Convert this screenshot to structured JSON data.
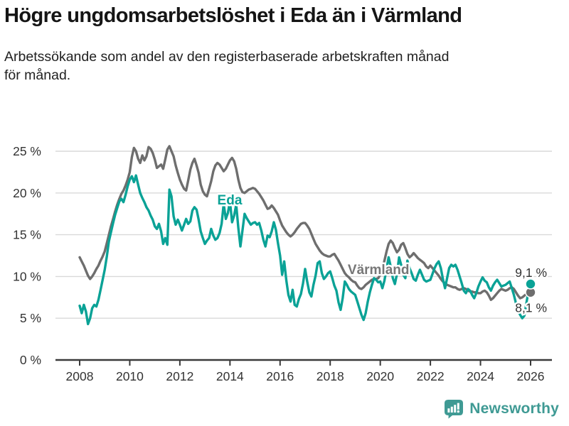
{
  "page": {
    "title": "Högre ungdomsarbetslöshet i Eda än i Värmland",
    "subtitle_line1": "Arbetssökande som andel av den registerbaserade arbetskraften månad",
    "subtitle_line2": "för månad."
  },
  "footer": {
    "brand": "Newsworthy",
    "brand_color": "#3f9a94",
    "icon": "bar-chart-speech-bubble-icon"
  },
  "chart_data": {
    "type": "line",
    "title": "Högre ungdomsarbetslöshet i Eda än i Värmland",
    "subtitle": "Arbetssökande som andel av den registerbaserade arbetskraften månad för månad.",
    "xlabel": "",
    "ylabel": "",
    "grid": true,
    "x_range": [
      2008,
      2026.85
    ],
    "ylim": [
      0,
      26
    ],
    "y_ticks": [
      {
        "value": 0,
        "label": "0 %"
      },
      {
        "value": 5,
        "label": "5 %"
      },
      {
        "value": 10,
        "label": "10 %"
      },
      {
        "value": 15,
        "label": "15 %"
      },
      {
        "value": 20,
        "label": "20 %"
      },
      {
        "value": 25,
        "label": "25 %"
      }
    ],
    "x_ticks": [
      {
        "value": 2008,
        "label": "2008"
      },
      {
        "value": 2010,
        "label": "2010"
      },
      {
        "value": 2012,
        "label": "2012"
      },
      {
        "value": 2014,
        "label": "2014"
      },
      {
        "value": 2016,
        "label": "2016"
      },
      {
        "value": 2018,
        "label": "2018"
      },
      {
        "value": 2020,
        "label": "2020"
      },
      {
        "value": 2022,
        "label": "2022"
      },
      {
        "value": 2024,
        "label": "2024"
      },
      {
        "value": 2026,
        "label": "2026"
      }
    ],
    "colors": {
      "eda": "#0aa296",
      "varmland": "#6e6e6e",
      "grid": "#d9d9d9",
      "axis": "#3a3a3a",
      "text": "#333333"
    },
    "series": [
      {
        "name": "Värmland",
        "color": "#6e6e6e",
        "start_year": 2008,
        "interval_months": 1,
        "values": [
          12.3,
          11.8,
          11.3,
          10.7,
          10.1,
          9.7,
          10.0,
          10.4,
          10.9,
          11.3,
          11.9,
          12.4,
          13.0,
          14.0,
          15.0,
          16.0,
          16.9,
          17.8,
          18.6,
          19.3,
          19.9,
          20.3,
          20.9,
          21.6,
          22.5,
          24.3,
          25.4,
          25.0,
          24.1,
          23.6,
          24.5,
          23.9,
          24.4,
          25.5,
          25.3,
          24.8,
          24.0,
          23.0,
          23.2,
          23.4,
          22.9,
          24.0,
          25.2,
          25.6,
          25.0,
          24.4,
          23.3,
          22.4,
          21.6,
          21.0,
          20.5,
          20.3,
          21.5,
          22.8,
          23.6,
          24.1,
          23.3,
          22.4,
          21.0,
          20.2,
          19.8,
          19.6,
          20.5,
          21.4,
          22.6,
          23.3,
          23.6,
          23.4,
          23.0,
          22.6,
          22.9,
          23.4,
          23.9,
          24.2,
          23.8,
          22.9,
          21.6,
          20.6,
          20.1,
          20.0,
          20.2,
          20.4,
          20.5,
          20.6,
          20.5,
          20.2,
          19.9,
          19.5,
          19.1,
          18.6,
          18.1,
          18.2,
          18.5,
          18.2,
          17.8,
          17.4,
          16.7,
          16.1,
          15.7,
          15.3,
          15.0,
          14.8,
          15.0,
          15.3,
          15.7,
          16.0,
          16.3,
          16.4,
          16.4,
          16.1,
          15.7,
          15.1,
          14.5,
          13.9,
          13.5,
          13.1,
          12.8,
          12.6,
          12.5,
          12.4,
          12.4,
          12.6,
          12.7,
          12.3,
          11.9,
          11.4,
          10.9,
          10.4,
          10.1,
          9.9,
          9.6,
          9.4,
          9.3,
          8.9,
          8.6,
          8.5,
          8.7,
          9.0,
          9.2,
          9.4,
          9.6,
          9.7,
          9.7,
          9.8,
          10.2,
          10.8,
          11.9,
          13.0,
          13.9,
          14.3,
          14.0,
          13.4,
          12.9,
          13.2,
          13.8,
          14.0,
          13.4,
          12.7,
          12.3,
          12.5,
          12.8,
          12.5,
          12.2,
          12.0,
          11.8,
          11.6,
          11.2,
          11.0,
          11.3,
          11.0,
          10.7,
          10.4,
          10.1,
          9.7,
          9.4,
          9.2,
          9.0,
          8.9,
          8.8,
          8.7,
          8.7,
          8.5,
          8.4,
          8.5,
          8.6,
          8.5,
          8.3,
          8.2,
          8.2,
          8.1,
          8.1,
          8.0,
          8.0,
          8.2,
          8.3,
          8.1,
          7.7,
          7.2,
          7.4,
          7.7,
          8.0,
          8.3,
          8.5,
          8.4,
          8.3,
          8.4,
          8.6,
          8.7,
          8.5,
          8.1,
          7.7,
          7.4,
          7.5,
          7.7,
          7.9,
          8.0,
          8.1
        ]
      },
      {
        "name": "Eda",
        "color": "#0aa296",
        "start_year": 2008,
        "interval_months": 1,
        "values": [
          6.5,
          5.6,
          6.6,
          5.8,
          4.3,
          5.0,
          6.2,
          6.6,
          6.4,
          7.2,
          8.4,
          9.6,
          10.8,
          12.4,
          14.2,
          15.3,
          16.4,
          17.4,
          18.2,
          19.0,
          19.3,
          18.9,
          19.8,
          20.8,
          21.6,
          22.0,
          21.3,
          22.1,
          21.0,
          20.0,
          19.4,
          18.9,
          18.3,
          17.9,
          17.3,
          16.8,
          16.0,
          15.7,
          16.3,
          15.4,
          13.9,
          14.6,
          13.8,
          20.4,
          19.6,
          17.2,
          16.2,
          16.8,
          16.2,
          15.5,
          16.2,
          16.9,
          16.3,
          16.6,
          17.9,
          18.3,
          18.0,
          16.8,
          15.4,
          14.6,
          13.9,
          14.3,
          14.6,
          15.7,
          14.9,
          14.4,
          14.6,
          15.2,
          16.3,
          18.7,
          16.9,
          17.6,
          19.0,
          16.5,
          17.3,
          18.6,
          15.8,
          13.6,
          15.5,
          17.5,
          17.0,
          16.6,
          16.2,
          16.4,
          16.5,
          16.2,
          16.4,
          15.5,
          14.4,
          13.6,
          14.9,
          14.7,
          15.4,
          16.5,
          15.6,
          14.0,
          12.5,
          10.2,
          11.8,
          9.5,
          7.8,
          7.0,
          8.4,
          6.6,
          6.4,
          7.3,
          7.9,
          9.2,
          10.9,
          9.4,
          8.1,
          7.6,
          9.0,
          10.1,
          11.6,
          11.8,
          10.4,
          9.7,
          10.0,
          10.4,
          10.6,
          9.8,
          8.9,
          8.3,
          6.9,
          6.0,
          7.4,
          9.4,
          9.0,
          8.5,
          8.2,
          8.0,
          7.8,
          7.0,
          6.2,
          5.4,
          4.8,
          5.6,
          7.0,
          8.1,
          9.0,
          9.8,
          9.6,
          9.3,
          9.4,
          8.6,
          9.5,
          11.0,
          12.3,
          11.2,
          9.8,
          9.1,
          10.3,
          12.3,
          11.4,
          10.2,
          9.8,
          11.9,
          11.0,
          10.4,
          9.7,
          9.5,
          10.2,
          10.8,
          10.2,
          9.6,
          9.4,
          9.5,
          9.6,
          10.3,
          11.0,
          11.5,
          11.8,
          11.0,
          9.7,
          8.6,
          9.8,
          11.0,
          11.4,
          11.2,
          11.4,
          10.8,
          10.0,
          9.2,
          8.3,
          8.0,
          8.5,
          8.3,
          7.8,
          7.4,
          8.0,
          8.8,
          9.4,
          9.9,
          9.5,
          9.3,
          8.7,
          8.3,
          8.9,
          9.3,
          9.6,
          9.2,
          8.8,
          8.9,
          9.0,
          9.2,
          9.4,
          8.6,
          7.8,
          6.8,
          6.0,
          5.4,
          5.0,
          5.3,
          6.8,
          8.3,
          9.1
        ]
      }
    ],
    "annotations": [
      {
        "text": "Eda",
        "year": 2013.99,
        "value": 19.2,
        "color": "#0aa296"
      },
      {
        "text": "Värmland",
        "year": 2019.93,
        "value": 10.9,
        "color": "#777777"
      }
    ],
    "end_labels": [
      {
        "series": "Eda",
        "text": "9,1 %",
        "dy": -16
      },
      {
        "series": "Värmland",
        "text": "8,1 %",
        "dy": 22
      }
    ],
    "legend_position": "inline-labels"
  }
}
